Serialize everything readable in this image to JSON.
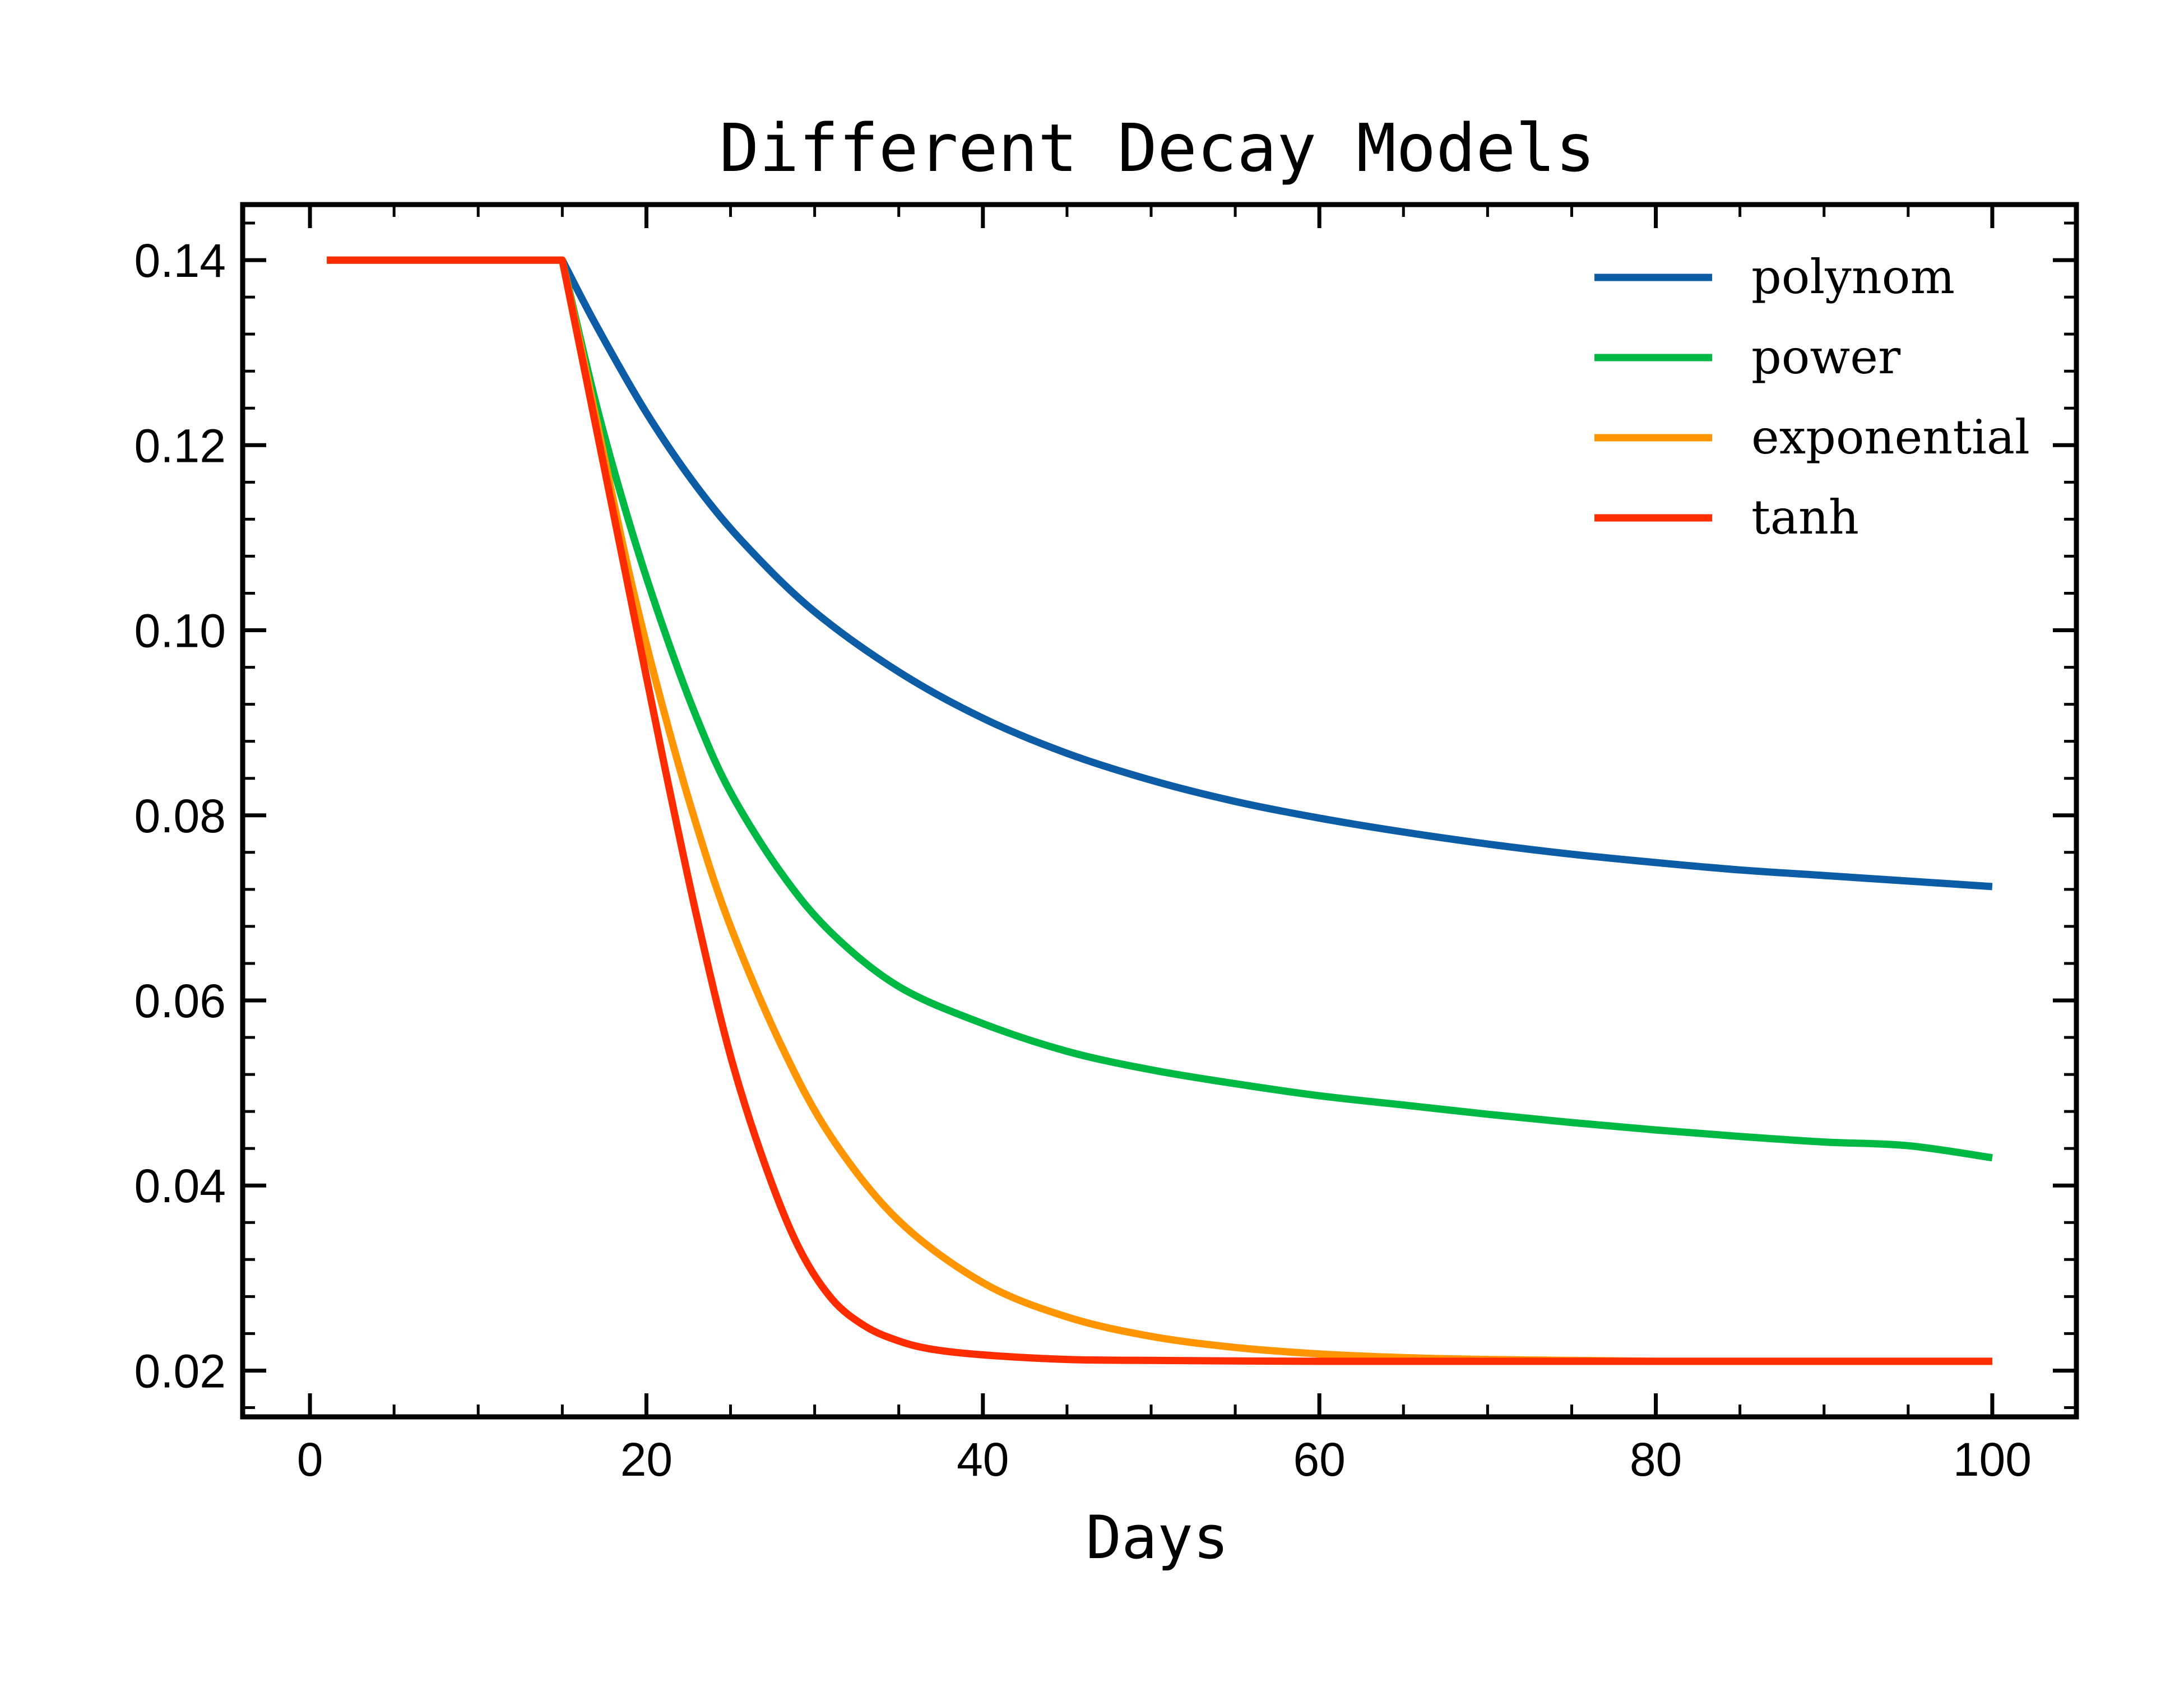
{
  "chart_data": {
    "type": "line",
    "title": "Different Decay Models",
    "xlabel": "Days",
    "ylabel": "",
    "xlim": [
      -4,
      105
    ],
    "ylim": [
      0.015,
      0.146
    ],
    "xticks": [
      0,
      20,
      40,
      60,
      80,
      100
    ],
    "xtick_labels": [
      "0",
      "20",
      "40",
      "60",
      "80",
      "100"
    ],
    "yticks": [
      0.02,
      0.04,
      0.06,
      0.08,
      0.1,
      0.12,
      0.14
    ],
    "ytick_labels": [
      "0.02",
      "0.04",
      "0.06",
      "0.08",
      "0.10",
      "0.12",
      "0.14"
    ],
    "grid": false,
    "legend_position": "top-right",
    "series": [
      {
        "name": "polynom",
        "color": "#0C5DA5",
        "x": [
          1,
          15,
          17,
          20,
          23,
          26,
          30,
          35,
          40,
          45,
          50,
          55,
          60,
          65,
          70,
          75,
          80,
          85,
          90,
          95,
          100
        ],
        "y": [
          0.14,
          0.14,
          0.133,
          0.1235,
          0.1155,
          0.109,
          0.102,
          0.0955,
          0.0905,
          0.0867,
          0.0838,
          0.0815,
          0.0797,
          0.0782,
          0.0769,
          0.0758,
          0.0749,
          0.0741,
          0.0735,
          0.0729,
          0.0723
        ]
      },
      {
        "name": "power",
        "color": "#00B945",
        "x": [
          1,
          15,
          17,
          19,
          21,
          23,
          25,
          28,
          31,
          35,
          40,
          45,
          50,
          55,
          60,
          65,
          70,
          75,
          80,
          85,
          90,
          95,
          100
        ],
        "y": [
          0.14,
          0.14,
          0.1245,
          0.1115,
          0.1003,
          0.0905,
          0.0825,
          0.0738,
          0.0673,
          0.0615,
          0.0575,
          0.0545,
          0.0525,
          0.051,
          0.0497,
          0.0487,
          0.0477,
          0.0468,
          0.046,
          0.0453,
          0.0447,
          0.0443,
          0.043
        ]
      },
      {
        "name": "exponential",
        "color": "#FF9500",
        "x": [
          1,
          15,
          17,
          19,
          21,
          23,
          25,
          28,
          31,
          35,
          40,
          45,
          50,
          55,
          60,
          65,
          70,
          75,
          80,
          85,
          90,
          95,
          100
        ],
        "y": [
          0.14,
          0.14,
          0.123,
          0.106,
          0.0915,
          0.0788,
          0.068,
          0.0552,
          0.0452,
          0.0362,
          0.0295,
          0.0258,
          0.0237,
          0.0225,
          0.0218,
          0.0214,
          0.0212,
          0.0211,
          0.021,
          0.021,
          0.021,
          0.021,
          0.021
        ]
      },
      {
        "name": "tanh",
        "color": "#FF2C00",
        "x": [
          1,
          15,
          17,
          19,
          21,
          23,
          25,
          27,
          29,
          31,
          33,
          35,
          37,
          40,
          45,
          50,
          60,
          70,
          80,
          90,
          100
        ],
        "y": [
          0.14,
          0.14,
          0.122,
          0.104,
          0.086,
          0.069,
          0.054,
          0.0425,
          0.0335,
          0.0278,
          0.0248,
          0.0232,
          0.0223,
          0.0217,
          0.0212,
          0.0211,
          0.021,
          0.021,
          0.021,
          0.021,
          0.021
        ]
      }
    ]
  }
}
